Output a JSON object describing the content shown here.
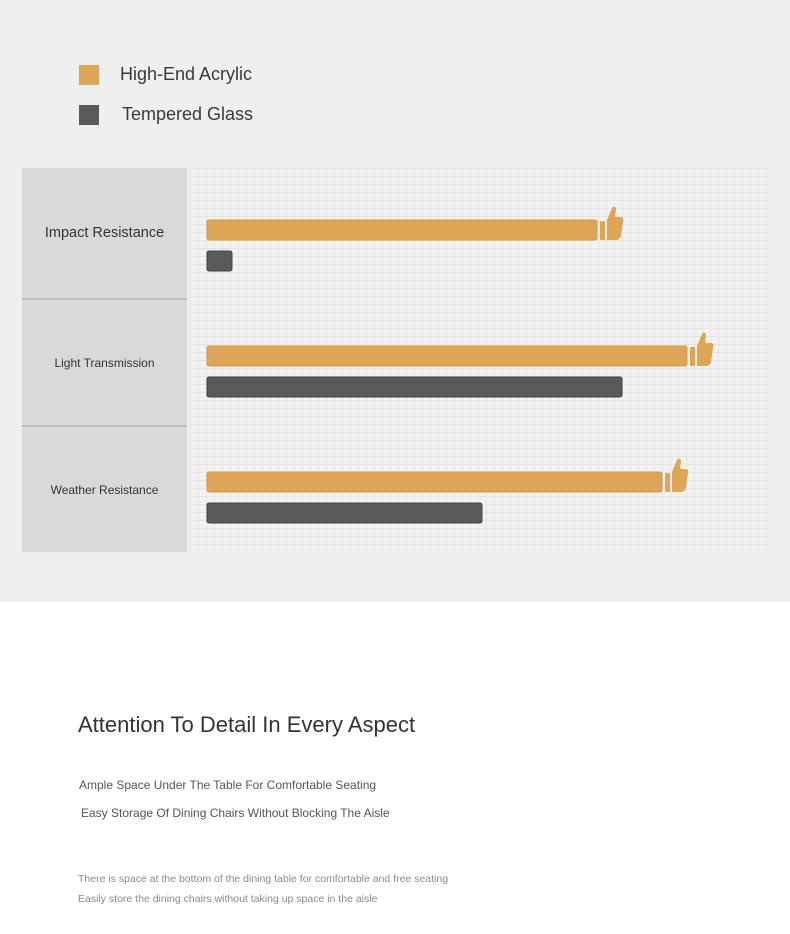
{
  "legend": [
    {
      "label": "High-End Acrylic",
      "color": "#dea654"
    },
    {
      "label": "Tempered Glass",
      "color": "#595959"
    }
  ],
  "chart_data": {
    "type": "bar",
    "orientation": "horizontal",
    "categories": [
      "Impact Resistance",
      "Light Transmission",
      "Weather Resistance"
    ],
    "series": [
      {
        "name": "High-End Acrylic",
        "color": "#dea654",
        "values": [
          78,
          96,
          91
        ]
      },
      {
        "name": "Tempered Glass",
        "color": "#595959",
        "values": [
          5,
          83,
          55
        ]
      }
    ],
    "xlim": [
      0,
      100
    ],
    "grid": true,
    "marker": "thumbs-up-icon",
    "legend_position": "top-left",
    "title": "",
    "xlabel": "",
    "ylabel": ""
  },
  "details": {
    "heading": "Attention To Detail In Every Aspect",
    "features": [
      "Ample Space Under The Table For Comfortable Seating",
      "Easy Storage Of Dining Chairs Without Blocking The Aisle"
    ],
    "notes": [
      "There is space at the bottom of the dining table for comfortable and free seating",
      "Easily store the dining chairs without taking up space in the aisle"
    ]
  }
}
